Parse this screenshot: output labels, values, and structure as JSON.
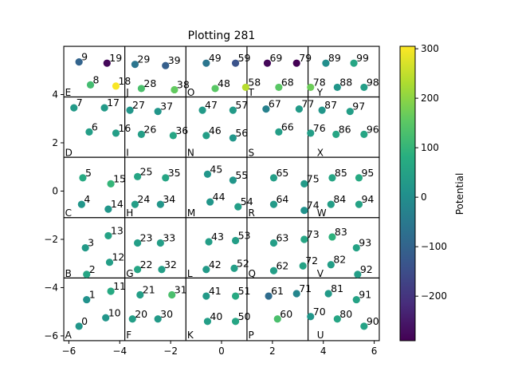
{
  "chart_data": {
    "type": "scatter",
    "title": "Plotting 281",
    "xlabel": "",
    "ylabel": "",
    "xlim": [
      -6.2,
      6.2
    ],
    "ylim": [
      -6.2,
      6.0
    ],
    "xticks": [
      -6,
      -4,
      -2,
      0,
      2,
      4,
      6
    ],
    "yticks": [
      -6,
      -4,
      -2,
      0,
      2,
      4
    ],
    "xtick_labels": [
      "−6",
      "−4",
      "−2",
      "0",
      "2",
      "4",
      "6"
    ],
    "ytick_labels": [
      "−6",
      "−4",
      "−2",
      "0",
      "2",
      "4"
    ],
    "grid": false,
    "colorbar": {
      "label": "Potential",
      "min": -290,
      "max": 305,
      "ticks": [
        300,
        200,
        100,
        0,
        -100,
        -200
      ],
      "tick_labels": [
        "300",
        "200",
        "100",
        "0",
        "−100",
        "−200"
      ],
      "colormap": "viridis"
    },
    "cells": {
      "xedges": [
        -6.2,
        -3.8,
        -1.4,
        1.0,
        3.4,
        6.2
      ],
      "yedges": [
        -6.2,
        -3.6,
        -1.1,
        1.4,
        3.9,
        6.0
      ],
      "labels": [
        {
          "text": "A",
          "x": -6.15,
          "y": -6.1
        },
        {
          "text": "B",
          "x": -6.15,
          "y": -3.55
        },
        {
          "text": "C",
          "x": -6.15,
          "y": -1.05
        },
        {
          "text": "D",
          "x": -6.15,
          "y": 1.45
        },
        {
          "text": "E",
          "x": -6.15,
          "y": 3.95
        },
        {
          "text": "F",
          "x": -3.75,
          "y": -6.1
        },
        {
          "text": "G",
          "x": -3.75,
          "y": -3.55
        },
        {
          "text": "H",
          "x": -3.75,
          "y": -1.05
        },
        {
          "text": "I",
          "x": -3.75,
          "y": 1.45
        },
        {
          "text": "J",
          "x": -3.75,
          "y": 3.95
        },
        {
          "text": "K",
          "x": -1.35,
          "y": -6.1
        },
        {
          "text": "L",
          "x": -1.35,
          "y": -3.55
        },
        {
          "text": "M",
          "x": -1.35,
          "y": -1.05
        },
        {
          "text": "N",
          "x": -1.35,
          "y": 1.45
        },
        {
          "text": "O",
          "x": -1.35,
          "y": 3.95
        },
        {
          "text": "P",
          "x": 1.05,
          "y": -6.1
        },
        {
          "text": "Q",
          "x": 1.05,
          "y": -3.55
        },
        {
          "text": "R",
          "x": 1.05,
          "y": -1.05
        },
        {
          "text": "S",
          "x": 1.05,
          "y": 1.45
        },
        {
          "text": "T",
          "x": 1.05,
          "y": 3.95
        },
        {
          "text": "U",
          "x": 3.75,
          "y": -6.1
        },
        {
          "text": "V",
          "x": 3.75,
          "y": -3.55
        },
        {
          "text": "W",
          "x": 3.75,
          "y": -1.05
        },
        {
          "text": "X",
          "x": 3.75,
          "y": 1.45
        },
        {
          "text": "Y",
          "x": 3.75,
          "y": 3.95
        }
      ]
    },
    "points": [
      {
        "label": "0",
        "x": -5.6,
        "y": -5.6,
        "value": 20
      },
      {
        "label": "1",
        "x": -5.3,
        "y": -4.5,
        "value": 10
      },
      {
        "label": "2",
        "x": -5.3,
        "y": -3.45,
        "value": 60
      },
      {
        "label": "3",
        "x": -5.35,
        "y": -2.35,
        "value": 30
      },
      {
        "label": "4",
        "x": -5.5,
        "y": -0.55,
        "value": 20
      },
      {
        "label": "5",
        "x": -5.45,
        "y": 0.55,
        "value": 70
      },
      {
        "label": "6",
        "x": -5.2,
        "y": 2.45,
        "value": 40
      },
      {
        "label": "7",
        "x": -5.8,
        "y": 3.45,
        "value": 30
      },
      {
        "label": "8",
        "x": -5.15,
        "y": 4.4,
        "value": 120
      },
      {
        "label": "9",
        "x": -5.6,
        "y": 5.35,
        "value": -100
      },
      {
        "label": "10",
        "x": -4.55,
        "y": -5.25,
        "value": 20
      },
      {
        "label": "11",
        "x": -4.35,
        "y": -4.15,
        "value": 70
      },
      {
        "label": "12",
        "x": -4.4,
        "y": -2.95,
        "value": 40
      },
      {
        "label": "13",
        "x": -4.45,
        "y": -1.85,
        "value": 50
      },
      {
        "label": "14",
        "x": -4.45,
        "y": -0.75,
        "value": 20
      },
      {
        "label": "15",
        "x": -4.35,
        "y": 0.3,
        "value": 100
      },
      {
        "label": "16",
        "x": -4.15,
        "y": 2.4,
        "value": 40
      },
      {
        "label": "17",
        "x": -4.6,
        "y": 3.45,
        "value": 30
      },
      {
        "label": "18",
        "x": -4.15,
        "y": 4.35,
        "value": 300
      },
      {
        "label": "19",
        "x": -4.5,
        "y": 5.3,
        "value": -280
      },
      {
        "label": "20",
        "x": -3.5,
        "y": -5.3,
        "value": 40
      },
      {
        "label": "21",
        "x": -3.2,
        "y": -4.3,
        "value": 40
      },
      {
        "label": "22",
        "x": -3.3,
        "y": -3.25,
        "value": 60
      },
      {
        "label": "23",
        "x": -3.3,
        "y": -2.15,
        "value": 40
      },
      {
        "label": "24",
        "x": -3.4,
        "y": -0.55,
        "value": 40
      },
      {
        "label": "25",
        "x": -3.3,
        "y": 0.6,
        "value": 60
      },
      {
        "label": "26",
        "x": -3.15,
        "y": 2.35,
        "value": 40
      },
      {
        "label": "27",
        "x": -3.6,
        "y": 3.35,
        "value": 20
      },
      {
        "label": "28",
        "x": -3.15,
        "y": 4.25,
        "value": 130
      },
      {
        "label": "29",
        "x": -3.4,
        "y": 5.25,
        "value": -60
      },
      {
        "label": "30",
        "x": -2.5,
        "y": -5.3,
        "value": 30
      },
      {
        "label": "31",
        "x": -1.95,
        "y": -4.3,
        "value": 130
      },
      {
        "label": "32",
        "x": -2.35,
        "y": -3.25,
        "value": 40
      },
      {
        "label": "33",
        "x": -2.4,
        "y": -2.15,
        "value": 40
      },
      {
        "label": "34",
        "x": -2.4,
        "y": -0.55,
        "value": 20
      },
      {
        "label": "35",
        "x": -2.2,
        "y": 0.55,
        "value": 60
      },
      {
        "label": "36",
        "x": -1.9,
        "y": 2.3,
        "value": 60
      },
      {
        "label": "37",
        "x": -2.5,
        "y": 3.3,
        "value": 20
      },
      {
        "label": "38",
        "x": -1.85,
        "y": 4.2,
        "value": 160
      },
      {
        "label": "39",
        "x": -2.2,
        "y": 5.2,
        "value": -110
      },
      {
        "label": "40",
        "x": -0.55,
        "y": -5.4,
        "value": 40
      },
      {
        "label": "41",
        "x": -0.6,
        "y": -4.35,
        "value": 30
      },
      {
        "label": "42",
        "x": -0.6,
        "y": -3.25,
        "value": 30
      },
      {
        "label": "43",
        "x": -0.5,
        "y": -2.1,
        "value": 40
      },
      {
        "label": "44",
        "x": -0.45,
        "y": -0.45,
        "value": 20
      },
      {
        "label": "45",
        "x": -0.55,
        "y": 0.7,
        "value": 20
      },
      {
        "label": "46",
        "x": -0.6,
        "y": 2.3,
        "value": 40
      },
      {
        "label": "47",
        "x": -0.75,
        "y": 3.35,
        "value": 30
      },
      {
        "label": "48",
        "x": -0.25,
        "y": 4.25,
        "value": 150
      },
      {
        "label": "49",
        "x": -0.6,
        "y": 5.3,
        "value": -60
      },
      {
        "label": "50",
        "x": 0.55,
        "y": -5.4,
        "value": 60
      },
      {
        "label": "51",
        "x": 0.55,
        "y": -4.35,
        "value": 70
      },
      {
        "label": "52",
        "x": 0.5,
        "y": -3.2,
        "value": 40
      },
      {
        "label": "53",
        "x": 0.55,
        "y": -2.05,
        "value": 40
      },
      {
        "label": "54",
        "x": 0.65,
        "y": -0.65,
        "value": 40
      },
      {
        "label": "55",
        "x": 0.45,
        "y": 0.45,
        "value": 20
      },
      {
        "label": "56",
        "x": 0.45,
        "y": 2.2,
        "value": 20
      },
      {
        "label": "57",
        "x": 0.45,
        "y": 3.35,
        "value": 30
      },
      {
        "label": "58",
        "x": 0.95,
        "y": 4.3,
        "value": 240
      },
      {
        "label": "59",
        "x": 0.55,
        "y": 5.3,
        "value": -140
      },
      {
        "label": "60",
        "x": 2.2,
        "y": -5.3,
        "value": 130
      },
      {
        "label": "61",
        "x": 1.85,
        "y": -4.35,
        "value": -80
      },
      {
        "label": "62",
        "x": 2.05,
        "y": -3.3,
        "value": 40
      },
      {
        "label": "63",
        "x": 2.05,
        "y": -2.15,
        "value": 40
      },
      {
        "label": "64",
        "x": 2.05,
        "y": -0.55,
        "value": 30
      },
      {
        "label": "65",
        "x": 2.05,
        "y": 0.55,
        "value": 40
      },
      {
        "label": "66",
        "x": 2.25,
        "y": 2.45,
        "value": 40
      },
      {
        "label": "67",
        "x": 1.75,
        "y": 3.4,
        "value": -30
      },
      {
        "label": "68",
        "x": 2.25,
        "y": 4.3,
        "value": 150
      },
      {
        "label": "69",
        "x": 1.8,
        "y": 5.3,
        "value": -280
      },
      {
        "label": "70",
        "x": 3.5,
        "y": -5.2,
        "value": 20
      },
      {
        "label": "71",
        "x": 2.95,
        "y": -4.25,
        "value": -20
      },
      {
        "label": "72",
        "x": 3.2,
        "y": -3.1,
        "value": 50
      },
      {
        "label": "73",
        "x": 3.25,
        "y": -2.0,
        "value": 60
      },
      {
        "label": "74",
        "x": 3.25,
        "y": -0.8,
        "value": 10
      },
      {
        "label": "75",
        "x": 3.25,
        "y": 0.3,
        "value": 30
      },
      {
        "label": "76",
        "x": 3.5,
        "y": 2.4,
        "value": 40
      },
      {
        "label": "77",
        "x": 3.05,
        "y": 3.4,
        "value": 30
      },
      {
        "label": "78",
        "x": 3.5,
        "y": 4.3,
        "value": 170
      },
      {
        "label": "79",
        "x": 2.95,
        "y": 5.3,
        "value": -290
      },
      {
        "label": "80",
        "x": 4.55,
        "y": -5.3,
        "value": 60
      },
      {
        "label": "81",
        "x": 4.2,
        "y": -4.25,
        "value": 30
      },
      {
        "label": "82",
        "x": 4.3,
        "y": -3.05,
        "value": 40
      },
      {
        "label": "83",
        "x": 4.35,
        "y": -1.9,
        "value": 90
      },
      {
        "label": "84",
        "x": 4.3,
        "y": -0.55,
        "value": 40
      },
      {
        "label": "85",
        "x": 4.35,
        "y": 0.55,
        "value": 60
      },
      {
        "label": "86",
        "x": 4.5,
        "y": 2.35,
        "value": 60
      },
      {
        "label": "87",
        "x": 3.95,
        "y": 3.35,
        "value": 20
      },
      {
        "label": "88",
        "x": 4.55,
        "y": 4.3,
        "value": 20
      },
      {
        "label": "89",
        "x": 4.1,
        "y": 5.3,
        "value": 0
      },
      {
        "label": "90",
        "x": 5.6,
        "y": -5.6,
        "value": 50
      },
      {
        "label": "91",
        "x": 5.3,
        "y": -4.5,
        "value": 50
      },
      {
        "label": "92",
        "x": 5.35,
        "y": -3.45,
        "value": 40
      },
      {
        "label": "93",
        "x": 5.3,
        "y": -2.35,
        "value": 50
      },
      {
        "label": "94",
        "x": 5.4,
        "y": -0.55,
        "value": 50
      },
      {
        "label": "95",
        "x": 5.4,
        "y": 0.55,
        "value": 70
      },
      {
        "label": "96",
        "x": 5.6,
        "y": 2.35,
        "value": 60
      },
      {
        "label": "97",
        "x": 5.05,
        "y": 3.3,
        "value": 40
      },
      {
        "label": "98",
        "x": 5.6,
        "y": 4.3,
        "value": 40
      },
      {
        "label": "99",
        "x": 5.2,
        "y": 5.3,
        "value": 60
      }
    ]
  }
}
